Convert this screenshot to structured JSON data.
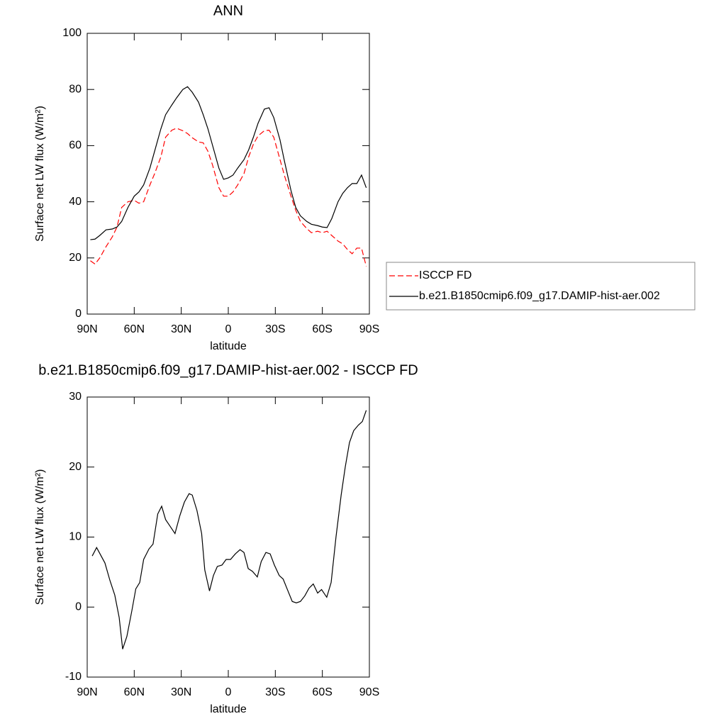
{
  "chart_data": [
    {
      "type": "line",
      "title": "ANN",
      "xlabel": "latitude",
      "ylabel": "Surface net LW flux (W/m²)",
      "xlim": [
        90,
        -90
      ],
      "xticks": [
        {
          "value": 90,
          "label": "90N"
        },
        {
          "value": 60,
          "label": "60N"
        },
        {
          "value": 30,
          "label": "30N"
        },
        0,
        {
          "value": -30,
          "label": "30S"
        },
        {
          "value": -60,
          "label": "60S"
        },
        {
          "value": -90,
          "label": "90S"
        }
      ],
      "ylim": [
        0,
        100
      ],
      "yticks": [
        0,
        20,
        40,
        60,
        80,
        100
      ],
      "x": [
        88,
        85,
        82,
        78,
        74,
        71,
        68,
        64,
        60,
        57,
        54,
        50,
        47,
        43,
        40,
        36,
        33,
        29,
        26,
        23,
        19,
        16,
        13,
        10,
        6,
        3,
        0,
        -3,
        -6,
        -10,
        -13,
        -16,
        -19,
        -23,
        -26,
        -29,
        -33,
        -36,
        -40,
        -43,
        -46,
        -50,
        -53,
        -57,
        -60,
        -63,
        -66,
        -70,
        -73,
        -76,
        -79,
        -82,
        -85,
        -88
      ],
      "legend": "right",
      "series": [
        {
          "name": "ISCCP FD",
          "color": "#ff0000",
          "dash": true,
          "values": [
            19,
            17.8,
            20,
            24,
            27.5,
            31,
            38,
            40,
            40.5,
            39.5,
            40,
            46,
            50,
            56,
            63,
            65.5,
            66.2,
            65.3,
            64.3,
            62.8,
            61.3,
            61,
            58,
            53,
            45,
            42,
            42,
            43.5,
            46,
            50,
            56,
            60.5,
            63.5,
            65.3,
            65.5,
            63,
            55,
            49,
            42,
            37,
            33,
            30.5,
            29,
            29.5,
            29,
            29.5,
            28,
            26,
            25,
            23,
            21.5,
            23.5,
            23.5,
            17
          ]
        },
        {
          "name": "b.e21.B1850cmip6.f09_g17.DAMIP-hist-aer.002",
          "color": "#000000",
          "dash": false,
          "values": [
            26.5,
            26.7,
            28,
            30,
            30.3,
            31,
            33,
            38,
            42,
            43.5,
            46,
            52,
            58,
            66,
            71,
            74.5,
            77,
            80,
            81,
            79,
            75.5,
            71,
            66,
            60,
            52,
            48,
            48.5,
            49.5,
            52,
            55,
            58.5,
            63,
            68,
            73,
            73.5,
            70,
            62,
            54,
            44,
            38,
            35,
            33,
            32,
            31.5,
            31,
            30.8,
            34,
            40,
            43,
            45,
            46.5,
            46.5,
            49.5,
            45
          ]
        }
      ]
    },
    {
      "type": "line",
      "title": "b.e21.B1850cmip6.f09_g17.DAMIP-hist-aer.002 - ISCCP FD",
      "xlabel": "latitude",
      "ylabel": "Surface net LW flux (W/m²)",
      "xlim": [
        90,
        -90
      ],
      "xticks": [
        {
          "value": 90,
          "label": "90N"
        },
        {
          "value": 60,
          "label": "60N"
        },
        {
          "value": 30,
          "label": "30N"
        },
        0,
        {
          "value": -30,
          "label": "30S"
        },
        {
          "value": -60,
          "label": "60S"
        },
        {
          "value": -90,
          "label": "90S"
        }
      ],
      "ylim": [
        -10,
        30
      ],
      "yticks": [
        -10,
        0,
        10,
        20,
        30
      ],
      "x": [
        86.8,
        84,
        78.7,
        75.5,
        72.4,
        69.6,
        67.4,
        64.7,
        61.5,
        59,
        56.5,
        54,
        50.6,
        48,
        45,
        42.5,
        40,
        37,
        34,
        31,
        28,
        25,
        23,
        20,
        17,
        15,
        12,
        9.5,
        7,
        4,
        1.4,
        -1.4,
        -4.5,
        -7.5,
        -10,
        -12.7,
        -15.4,
        -18.5,
        -21,
        -24,
        -26.7,
        -29.4,
        -32.5,
        -35,
        -37.7,
        -40.8,
        -43.4,
        -46,
        -48.8,
        -51.5,
        -54.2,
        -57,
        -59.5,
        -62.8,
        -65.6,
        -68.7,
        -72,
        -74.6,
        -77.3,
        -80,
        -83,
        -85.5,
        -88
      ],
      "series": [
        {
          "color": "#000000",
          "dash": false,
          "values": [
            7.3,
            8.5,
            6.3,
            3.8,
            1.7,
            -1.5,
            -6,
            -4.2,
            -0.5,
            2.6,
            3.5,
            6.8,
            8.3,
            9,
            13.3,
            14.4,
            12.5,
            11.5,
            10.5,
            13,
            15,
            16.2,
            16,
            13.8,
            10.5,
            5.3,
            2.3,
            4.5,
            5.8,
            6,
            6.8,
            6.8,
            7.6,
            8.2,
            7.8,
            5.5,
            5.1,
            4.3,
            6.5,
            7.8,
            7.6,
            6,
            4.5,
            4,
            2.5,
            0.8,
            0.6,
            0.8,
            1.6,
            2.7,
            3.3,
            2,
            2.5,
            1.4,
            3.5,
            10,
            16,
            20,
            23.5,
            25.2,
            26,
            26.5,
            28.1
          ]
        }
      ]
    }
  ]
}
